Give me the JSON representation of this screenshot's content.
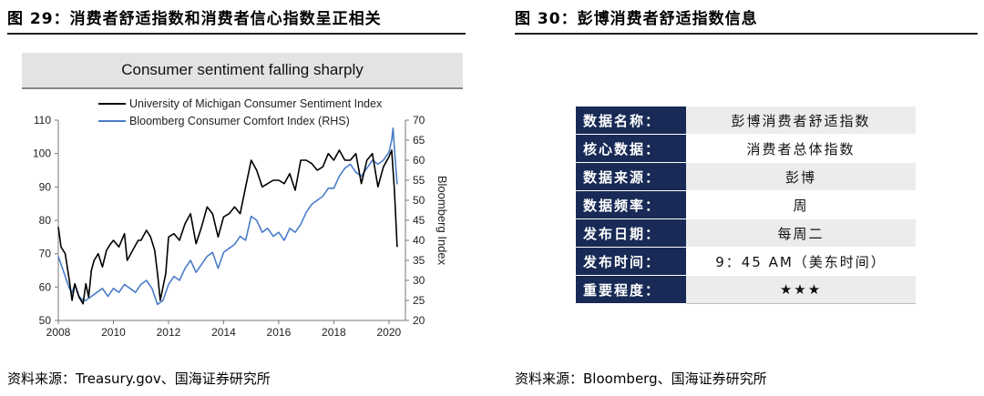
{
  "left_panel": {
    "figure_title": "图 29：消费者舒适指数和消费者信心指数呈正相关",
    "source": "资料来源：Treasury.gov、国海证券研究所"
  },
  "right_panel": {
    "figure_title": "图 30：彭博消费者舒适指数信息",
    "source": "资料来源：Bloomberg、国海证券研究所",
    "rows": [
      {
        "key": "数据名称：",
        "value": "彭博消费者舒适指数"
      },
      {
        "key": "核心数据：",
        "value": "消费者总体指数"
      },
      {
        "key": "数据来源：",
        "value": "彭博"
      },
      {
        "key": "数据频率：",
        "value": "周"
      },
      {
        "key": "发布日期：",
        "value": "每周二"
      },
      {
        "key": "发布时间：",
        "value": "9：45 AM（美东时间）"
      },
      {
        "key": "重要程度：",
        "value": "★★★"
      }
    ]
  },
  "chart_data": {
    "type": "line",
    "title": "Consumer sentiment falling sharply",
    "xlabel": "",
    "ylabel": "",
    "y2label": "Bloomberg Index",
    "xlim": [
      2008,
      2020.6
    ],
    "ylim": [
      50,
      110
    ],
    "y2lim": [
      20,
      70
    ],
    "x_ticks": [
      "2008",
      "2010",
      "2012",
      "2014",
      "2016",
      "2018",
      "2020"
    ],
    "y_ticks": [
      "50",
      "60",
      "70",
      "80",
      "90",
      "100",
      "110"
    ],
    "y2_ticks": [
      "20",
      "25",
      "30",
      "35",
      "40",
      "45",
      "50",
      "55",
      "60",
      "65",
      "70"
    ],
    "legend_position": "top",
    "grid": false,
    "series": [
      {
        "name": "University of Michigan Consumer Sentiment Index",
        "axis": "left",
        "color": "#000000",
        "x": [
          2008.0,
          2008.1,
          2008.25,
          2008.4,
          2008.5,
          2008.6,
          2008.75,
          2008.9,
          2009.0,
          2009.1,
          2009.2,
          2009.3,
          2009.45,
          2009.6,
          2009.75,
          2009.9,
          2010.0,
          2010.2,
          2010.4,
          2010.5,
          2010.7,
          2010.9,
          2011.0,
          2011.2,
          2011.35,
          2011.5,
          2011.6,
          2011.7,
          2011.9,
          2012.0,
          2012.2,
          2012.4,
          2012.6,
          2012.8,
          2013.0,
          2013.2,
          2013.4,
          2013.6,
          2013.8,
          2014.0,
          2014.2,
          2014.4,
          2014.6,
          2014.8,
          2015.0,
          2015.2,
          2015.4,
          2015.6,
          2015.8,
          2016.0,
          2016.2,
          2016.4,
          2016.6,
          2016.8,
          2017.0,
          2017.2,
          2017.4,
          2017.6,
          2017.8,
          2018.0,
          2018.2,
          2018.4,
          2018.6,
          2018.8,
          2019.0,
          2019.2,
          2019.4,
          2019.6,
          2019.8,
          2020.0,
          2020.1,
          2020.2,
          2020.3
        ],
        "y": [
          78,
          72,
          70,
          62,
          56,
          61,
          57,
          55,
          61,
          57,
          65,
          68,
          70,
          66,
          71,
          73,
          74,
          72,
          76,
          68,
          71,
          74,
          74,
          77,
          75,
          71,
          64,
          56,
          64,
          75,
          76,
          74,
          79,
          82,
          73,
          78,
          84,
          82,
          75,
          81,
          82,
          84,
          82,
          90,
          98,
          95,
          90,
          91,
          92,
          92,
          91,
          94,
          89,
          98,
          98,
          97,
          95,
          96,
          100,
          98,
          101,
          98,
          98,
          100,
          91,
          98,
          100,
          90,
          96,
          99,
          101,
          89,
          72
        ]
      },
      {
        "name": "Bloomberg Consumer Comfort Index (RHS)",
        "axis": "right",
        "color": "#4a7cc7",
        "x": [
          2008.0,
          2008.1,
          2008.25,
          2008.4,
          2008.5,
          2008.6,
          2008.75,
          2008.9,
          2009.0,
          2009.2,
          2009.4,
          2009.6,
          2009.8,
          2010.0,
          2010.2,
          2010.4,
          2010.6,
          2010.8,
          2011.0,
          2011.2,
          2011.4,
          2011.6,
          2011.8,
          2012.0,
          2012.2,
          2012.4,
          2012.6,
          2012.8,
          2013.0,
          2013.2,
          2013.4,
          2013.6,
          2013.8,
          2014.0,
          2014.2,
          2014.4,
          2014.6,
          2014.8,
          2015.0,
          2015.2,
          2015.4,
          2015.6,
          2015.8,
          2016.0,
          2016.2,
          2016.4,
          2016.6,
          2016.8,
          2017.0,
          2017.2,
          2017.4,
          2017.6,
          2017.8,
          2018.0,
          2018.2,
          2018.4,
          2018.6,
          2018.8,
          2019.0,
          2019.2,
          2019.4,
          2019.6,
          2019.8,
          2020.0,
          2020.1,
          2020.15,
          2020.22,
          2020.3
        ],
        "y": [
          36,
          34,
          31,
          28,
          27,
          29,
          26,
          25,
          25,
          26,
          27,
          28,
          26,
          28,
          27,
          29,
          28,
          27,
          29,
          30,
          28,
          24,
          25,
          29,
          31,
          30,
          33,
          35,
          32,
          34,
          36,
          37,
          33,
          37,
          38,
          39,
          41,
          40,
          46,
          45,
          42,
          43,
          41,
          42,
          40,
          43,
          42,
          44,
          47,
          49,
          50,
          51,
          53,
          53,
          56,
          58,
          59,
          57,
          56,
          58,
          60,
          59,
          60,
          62,
          65,
          68,
          61,
          54
        ]
      }
    ]
  }
}
